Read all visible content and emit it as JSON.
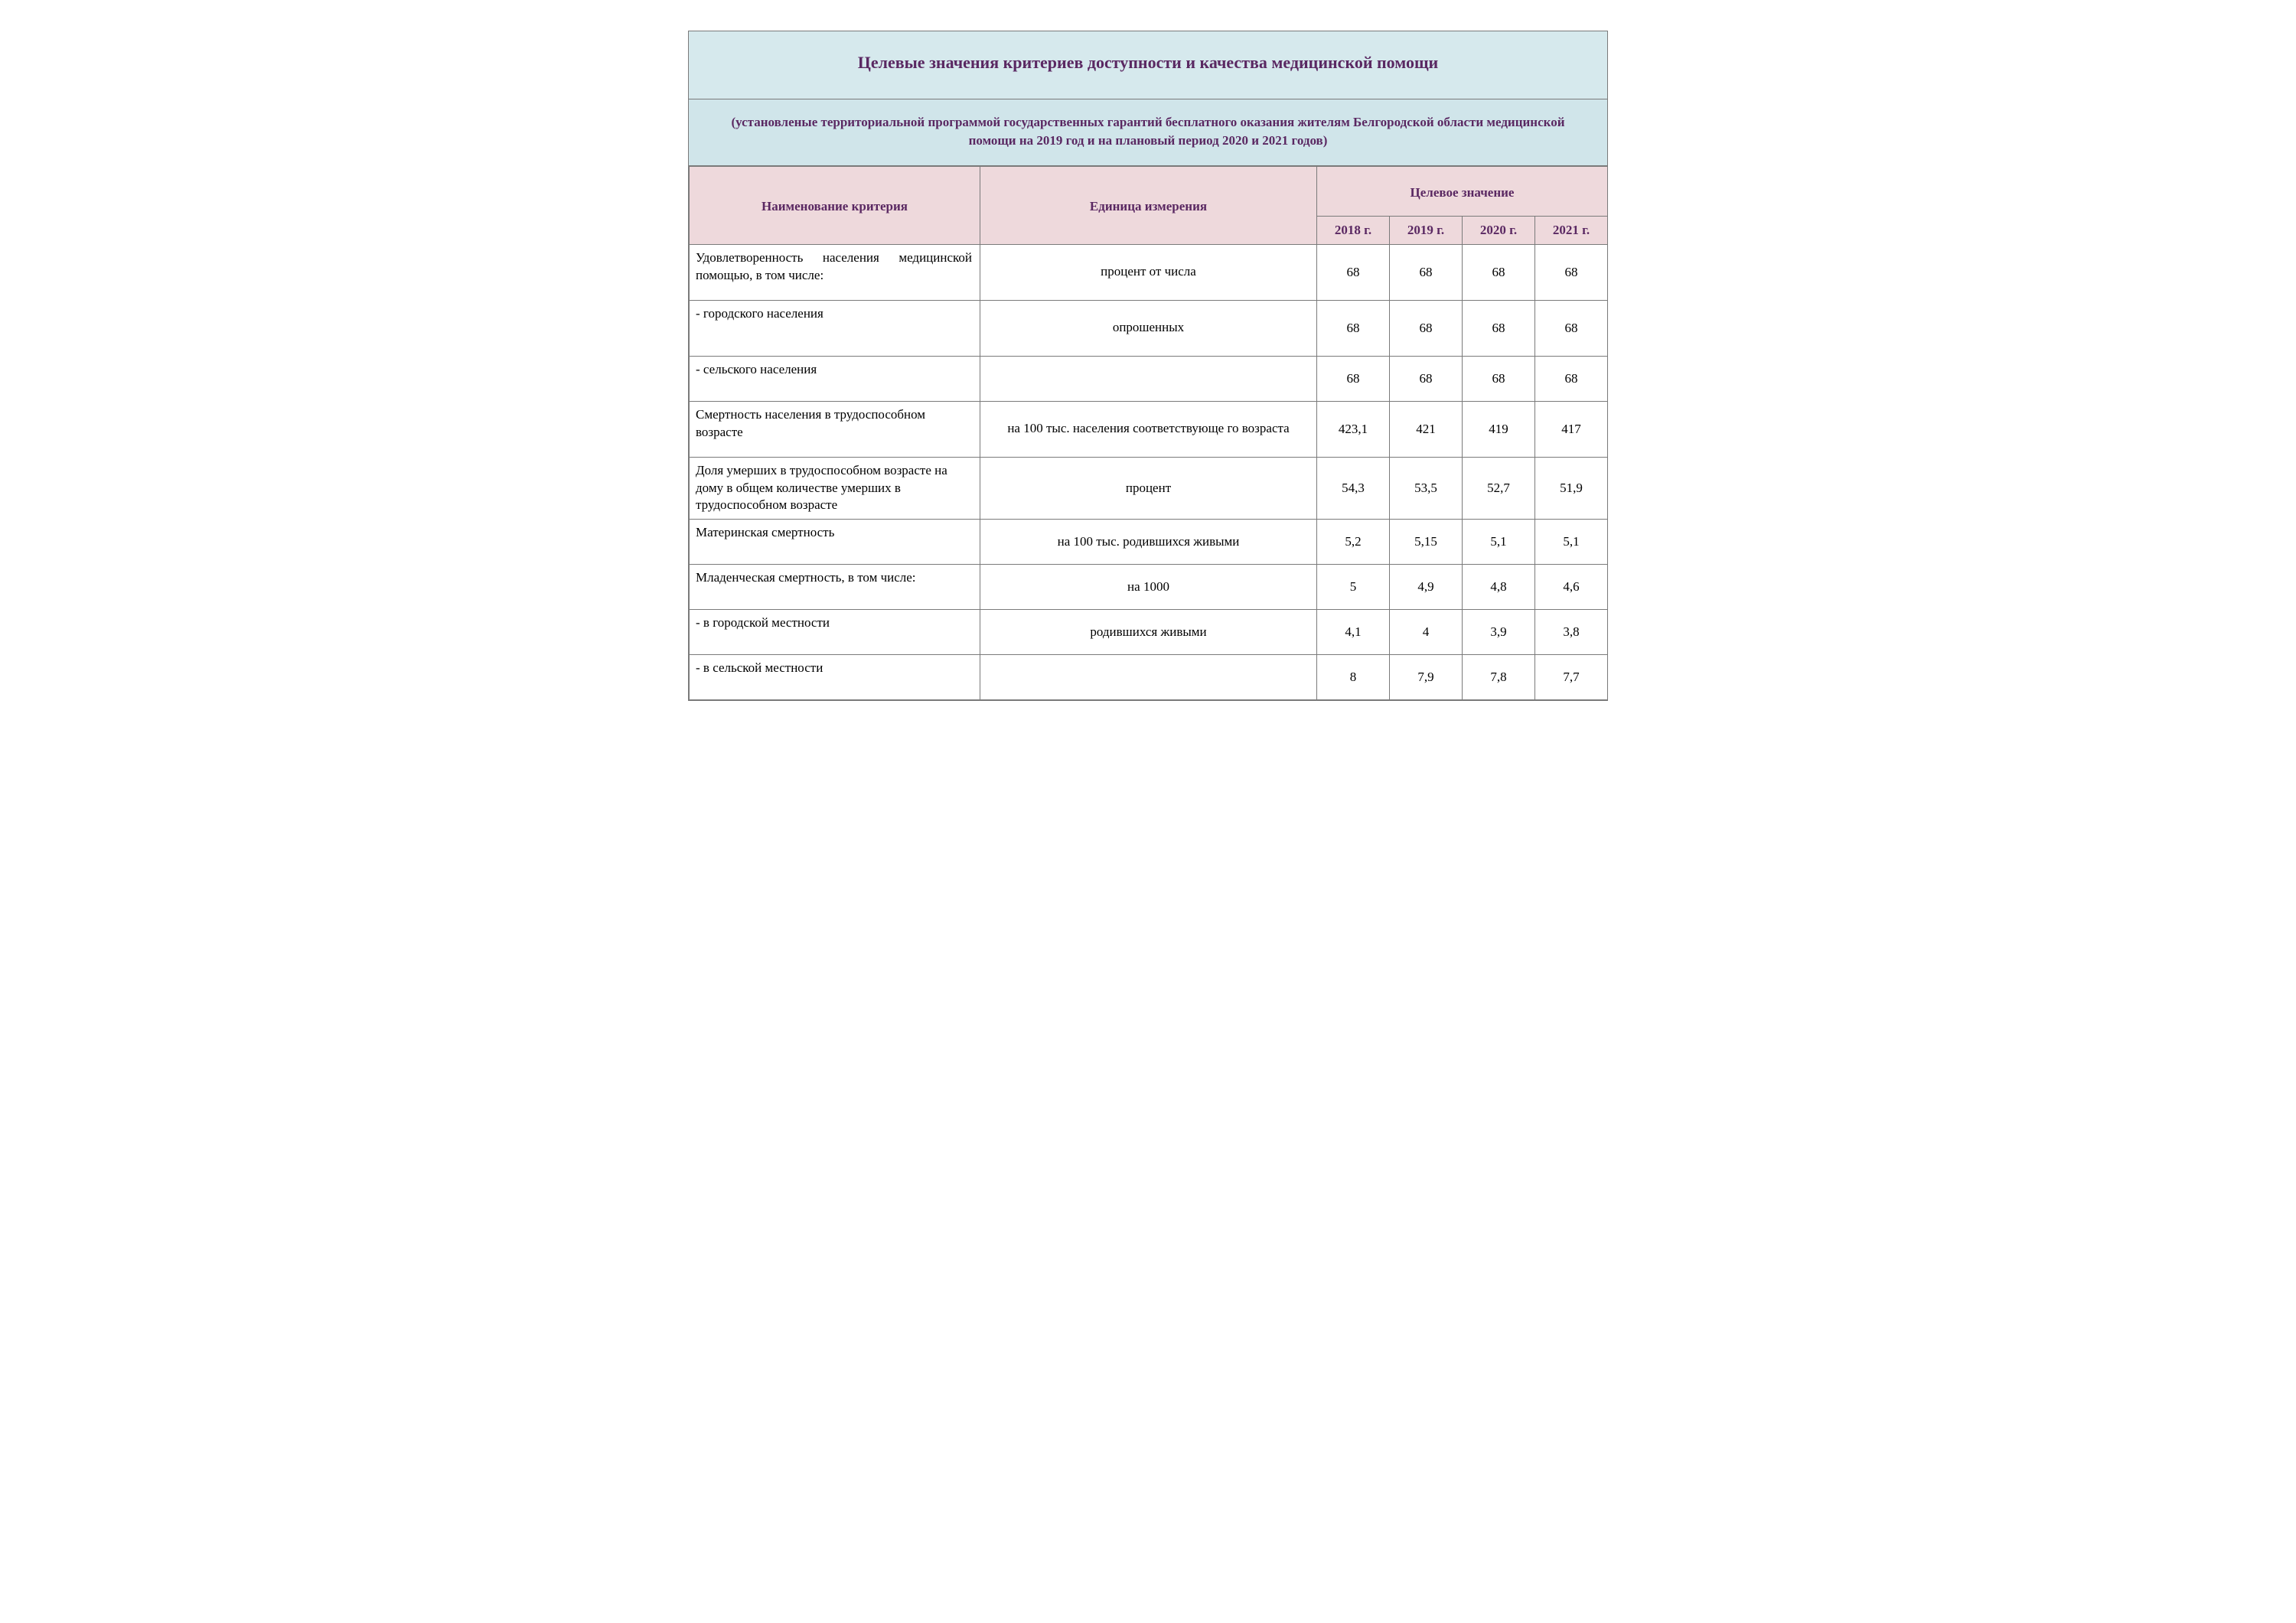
{
  "title": "Целевые значения критериев доступности и качества медицинской помощи",
  "subtitle": "(установленые территориальной программой государственных гарантий бесплатного оказания жителям Белгородской области медицинской помощи на 2019 год и на плановый период 2020 и 2021 годов)",
  "headers": {
    "name": "Наименование критерия",
    "unit": "Единица измерения",
    "target": "Целевое значение",
    "years": [
      "2018 г.",
      "2019 г.",
      "2020 г.",
      "2021 г."
    ]
  },
  "rows": [
    {
      "name": "Удовлетворенность населения медицинской помощью, в том числе:",
      "justify": true,
      "unit": "процент от числа",
      "vals": [
        "68",
        "68",
        "68",
        "68"
      ],
      "tall": true
    },
    {
      "name": "- городского населения",
      "unit": "опрошенных",
      "vals": [
        "68",
        "68",
        "68",
        "68"
      ],
      "tall": true
    },
    {
      "name": "- сельского населения",
      "unit": "",
      "vals": [
        "68",
        "68",
        "68",
        "68"
      ],
      "short": true
    },
    {
      "name": "Смертность населения в трудоспособном возрасте",
      "unit": "на 100 тыс. населения соответствующе го возраста",
      "vals": [
        "423,1",
        "421",
        "419",
        "417"
      ],
      "tall": true
    },
    {
      "name": "Доля умерших в трудоспособном возрасте на дому в общем количестве умерших в трудоспособном возрасте",
      "unit": "процент",
      "vals": [
        "54,3",
        "53,5",
        "52,7",
        "51,9"
      ],
      "tall": true
    },
    {
      "name": "Материнская смертность",
      "unit": "на 100 тыс. родившихся живыми",
      "vals": [
        "5,2",
        "5,15",
        "5,1",
        "5,1"
      ],
      "short": true
    },
    {
      "name": "Младенческая смертность, в том числе:",
      "unit": "на 1000",
      "vals": [
        "5",
        "4,9",
        "4,8",
        "4,6"
      ],
      "short": true
    },
    {
      "name": "- в городской местности",
      "unit": "родившихся живыми",
      "vals": [
        "4,1",
        "4",
        "3,9",
        "3,8"
      ],
      "short": true
    },
    {
      "name": "- в сельской местности",
      "unit": "",
      "vals": [
        "8",
        "7,9",
        "7,8",
        "7,7"
      ],
      "short": true
    }
  ],
  "colors": {
    "title_bg": "#d6e9ed",
    "header_bg": "#eed9dc",
    "header_text": "#5a2862",
    "border": "#7a7a7a"
  }
}
